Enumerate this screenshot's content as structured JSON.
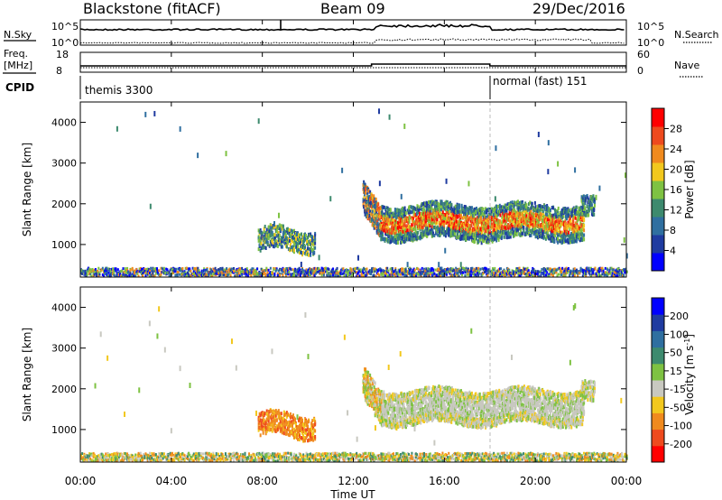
{
  "header": {
    "station": "Blackstone (fitACF)",
    "beam": "Beam 09",
    "date": "29/Dec/2016"
  },
  "top_panels": {
    "nsky_label": "N.Sky",
    "nsearch_label": "N.Search",
    "left_tick_hi": "10^5",
    "left_tick_lo": "10^0",
    "right_tick_hi": "10^5",
    "right_tick_lo": "10^0",
    "freq_label_1": "Freq.",
    "freq_label_2": "[MHz]",
    "freq_tick_hi": "18",
    "freq_tick_lo": "8",
    "nave_label": "Nave",
    "nave_tick_hi": "60",
    "nave_tick_lo": "0",
    "cpid_label": "CPID",
    "cpid_1": "themis 3300",
    "cpid_2": "normal (fast) 151"
  },
  "colors": {
    "power": [
      "#0000ff",
      "#1f3ba0",
      "#2f6fa0",
      "#3d8a6e",
      "#7ec242",
      "#f2c81e",
      "#f08a1e",
      "#ee4a1e",
      "#ff0000"
    ],
    "velocity": [
      "#ff0000",
      "#ee4a1e",
      "#f08a1e",
      "#f2c81e",
      "#c8c8c0",
      "#7ec242",
      "#3d8a6e",
      "#2f6fa0",
      "#1f3ba0",
      "#0000ff"
    ]
  },
  "chart_data": [
    {
      "type": "heatmap",
      "name": "Power",
      "ylabel": "Slant Range [km]",
      "colorbar_label": "Power [dB]",
      "colorbar_ticks": [
        "4",
        "8",
        "12",
        "16",
        "20",
        "24",
        "28"
      ],
      "colorbar_range": [
        0,
        32
      ],
      "y_ticks": [
        "1000",
        "2000",
        "3000",
        "4000"
      ],
      "ylim": [
        200,
        4500
      ],
      "xlim_hours": [
        0,
        24
      ],
      "regions": [
        {
          "t": [
            0,
            24
          ],
          "r": [
            200,
            400
          ],
          "level": "low-mixed"
        },
        {
          "t": [
            7.8,
            10.2
          ],
          "r": [
            800,
            1400
          ],
          "level": "blue-green"
        },
        {
          "t": [
            12.5,
            13.2
          ],
          "r": [
            1400,
            2600
          ],
          "level": "blue-green-orange"
        },
        {
          "t": [
            13.2,
            22.0
          ],
          "r": [
            1100,
            2100
          ],
          "level": "green-orange-red"
        },
        {
          "t": [
            22.0,
            22.6
          ],
          "r": [
            1700,
            2300
          ],
          "level": "blue-green"
        }
      ]
    },
    {
      "type": "heatmap",
      "name": "Velocity",
      "ylabel": "Slant Range [km]",
      "colorbar_label": "Velocity [m s-1]",
      "colorbar_ticks": [
        "-200",
        "-100",
        "-50",
        "-15",
        "15",
        "50",
        "100",
        "200"
      ],
      "colorbar_range": [
        -250,
        250
      ],
      "y_ticks": [
        "1000",
        "2000",
        "3000",
        "4000"
      ],
      "ylim": [
        200,
        4500
      ],
      "xlim_hours": [
        0,
        24
      ],
      "regions": [
        {
          "t": [
            0,
            24
          ],
          "r": [
            200,
            400
          ],
          "level": "green-orange"
        },
        {
          "t": [
            7.8,
            10.5
          ],
          "r": [
            700,
            1500
          ],
          "level": "orange"
        },
        {
          "t": [
            12.5,
            13.2
          ],
          "r": [
            1400,
            2600
          ],
          "level": "grey-orange"
        },
        {
          "t": [
            13.2,
            22.6
          ],
          "r": [
            1100,
            2100
          ],
          "level": "grey"
        }
      ]
    }
  ],
  "xaxis": {
    "ticks": [
      "00:00",
      "04:00",
      "08:00",
      "12:00",
      "16:00",
      "20:00",
      "00:00"
    ],
    "label": "Time UT"
  }
}
